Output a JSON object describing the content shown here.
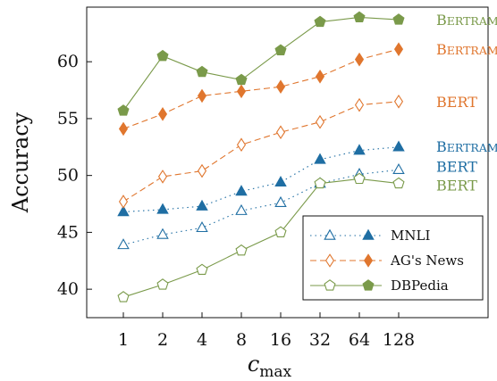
{
  "chart_data": {
    "type": "line",
    "xlabel": "c",
    "xlabel_sub": "max",
    "ylabel": "Accuracy",
    "categories": [
      "1",
      "2",
      "4",
      "8",
      "16",
      "32",
      "64",
      "128"
    ],
    "ylim": [
      37.5,
      64.8
    ],
    "yticks": [
      40,
      45,
      50,
      55,
      60
    ],
    "grid": false,
    "legend_position": "bottom-right",
    "colors": {
      "mnli": "#1f6ea3",
      "agnews": "#e0762e",
      "dbpedia": "#7a9a4a"
    },
    "legend": [
      {
        "label": "MNLI",
        "color_key": "mnli",
        "dash": "dotted"
      },
      {
        "label": "AG's News",
        "color_key": "agnews",
        "dash": "dashed"
      },
      {
        "label": "DBPedia",
        "color_key": "dbpedia",
        "dash": "solid"
      }
    ],
    "series": [
      {
        "name": "MNLI BERT",
        "dataset": "mnli",
        "model": "BERT",
        "marker": "triangle",
        "filled": false,
        "values": [
          43.9,
          44.8,
          45.4,
          46.9,
          47.6,
          49.3,
          50.1,
          50.5
        ],
        "end_label": "BERT"
      },
      {
        "name": "MNLI BERTRAM",
        "dataset": "mnli",
        "model": "BERTRAM",
        "marker": "triangle",
        "filled": true,
        "values": [
          46.8,
          47.0,
          47.3,
          48.6,
          49.4,
          51.4,
          52.2,
          52.5
        ],
        "end_label": "BERTRAM"
      },
      {
        "name": "AG's News BERT",
        "dataset": "agnews",
        "model": "BERT",
        "marker": "diamond",
        "filled": false,
        "values": [
          47.7,
          49.9,
          50.4,
          52.7,
          53.8,
          54.7,
          56.2,
          56.5
        ],
        "end_label": "BERT"
      },
      {
        "name": "AG's News BERTRAM",
        "dataset": "agnews",
        "model": "BERTRAM",
        "marker": "diamond",
        "filled": true,
        "values": [
          54.1,
          55.4,
          57.0,
          57.4,
          57.8,
          58.7,
          60.2,
          61.1
        ],
        "end_label": "BERTRAM"
      },
      {
        "name": "DBPedia BERT",
        "dataset": "dbpedia",
        "model": "BERT",
        "marker": "pentagon",
        "filled": false,
        "values": [
          39.3,
          40.4,
          41.7,
          43.4,
          45.0,
          49.3,
          49.7,
          49.3
        ],
        "end_label": "BERT"
      },
      {
        "name": "DBPedia BERTRAM",
        "dataset": "dbpedia",
        "model": "BERTRAM",
        "marker": "pentagon",
        "filled": true,
        "values": [
          55.7,
          60.5,
          59.1,
          58.4,
          61.0,
          63.5,
          63.9,
          63.7
        ],
        "end_label": "BERTRAM"
      }
    ]
  }
}
